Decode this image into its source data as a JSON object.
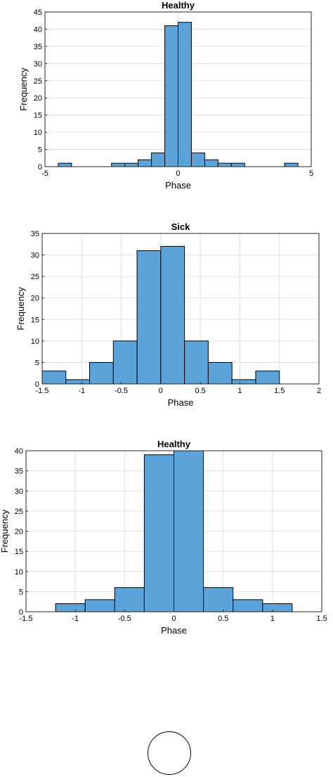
{
  "colors": {
    "bar_fill": "#5ba3d9",
    "bar_edge": "#000000",
    "grid": "#d9d9d9"
  },
  "chart_data": [
    {
      "type": "bar",
      "title": "Healthy",
      "xlabel": "Phase",
      "ylabel": "Frequency",
      "xlim": [
        -5,
        5
      ],
      "ylim": [
        0,
        45
      ],
      "xticks": [
        -5,
        0,
        5
      ],
      "yticks": [
        0,
        5,
        10,
        15,
        20,
        25,
        30,
        35,
        40,
        45
      ],
      "grid": true,
      "bins": [
        {
          "x0": -4.5,
          "x1": -4.0,
          "value": 1
        },
        {
          "x0": -2.5,
          "x1": -2.0,
          "value": 1
        },
        {
          "x0": -2.0,
          "x1": -1.5,
          "value": 1
        },
        {
          "x0": -1.5,
          "x1": -1.0,
          "value": 2
        },
        {
          "x0": -1.0,
          "x1": -0.5,
          "value": 4
        },
        {
          "x0": -0.5,
          "x1": 0.0,
          "value": 41
        },
        {
          "x0": 0.0,
          "x1": 0.5,
          "value": 42
        },
        {
          "x0": 0.5,
          "x1": 1.0,
          "value": 4
        },
        {
          "x0": 1.0,
          "x1": 1.5,
          "value": 2
        },
        {
          "x0": 1.5,
          "x1": 2.0,
          "value": 1
        },
        {
          "x0": 2.0,
          "x1": 2.5,
          "value": 1
        },
        {
          "x0": 4.0,
          "x1": 4.5,
          "value": 1
        }
      ]
    },
    {
      "type": "bar",
      "title": "Sick",
      "xlabel": "Phase",
      "ylabel": "Frequency",
      "xlim": [
        -1.5,
        2
      ],
      "ylim": [
        0,
        35
      ],
      "xticks": [
        -1.5,
        -1,
        -0.5,
        0,
        0.5,
        1,
        1.5,
        2
      ],
      "yticks": [
        0,
        5,
        10,
        15,
        20,
        25,
        30,
        35
      ],
      "grid": true,
      "bins": [
        {
          "x0": -1.5,
          "x1": -1.2,
          "value": 3
        },
        {
          "x0": -1.2,
          "x1": -0.9,
          "value": 1
        },
        {
          "x0": -0.9,
          "x1": -0.6,
          "value": 5
        },
        {
          "x0": -0.6,
          "x1": -0.3,
          "value": 10
        },
        {
          "x0": -0.3,
          "x1": 0.0,
          "value": 31
        },
        {
          "x0": 0.0,
          "x1": 0.3,
          "value": 32
        },
        {
          "x0": 0.3,
          "x1": 0.6,
          "value": 10
        },
        {
          "x0": 0.6,
          "x1": 0.9,
          "value": 5
        },
        {
          "x0": 0.9,
          "x1": 1.2,
          "value": 1
        },
        {
          "x0": 1.2,
          "x1": 1.5,
          "value": 3
        }
      ]
    },
    {
      "type": "bar",
      "title": "Healthy",
      "xlabel": "Phase",
      "ylabel": "Frequency",
      "xlim": [
        -1.5,
        1.5
      ],
      "ylim": [
        0,
        40
      ],
      "xticks": [
        -1.5,
        -1,
        -0.5,
        0,
        0.5,
        1,
        1.5
      ],
      "yticks": [
        0,
        5,
        10,
        15,
        20,
        25,
        30,
        35,
        40
      ],
      "grid": true,
      "bins": [
        {
          "x0": -1.2,
          "x1": -0.9,
          "value": 2
        },
        {
          "x0": -0.9,
          "x1": -0.6,
          "value": 3
        },
        {
          "x0": -0.6,
          "x1": -0.3,
          "value": 6
        },
        {
          "x0": -0.3,
          "x1": 0.0,
          "value": 39
        },
        {
          "x0": 0.0,
          "x1": 0.3,
          "value": 40
        },
        {
          "x0": 0.3,
          "x1": 0.6,
          "value": 6
        },
        {
          "x0": 0.6,
          "x1": 0.9,
          "value": 3
        },
        {
          "x0": 0.9,
          "x1": 1.2,
          "value": 2
        }
      ]
    }
  ]
}
